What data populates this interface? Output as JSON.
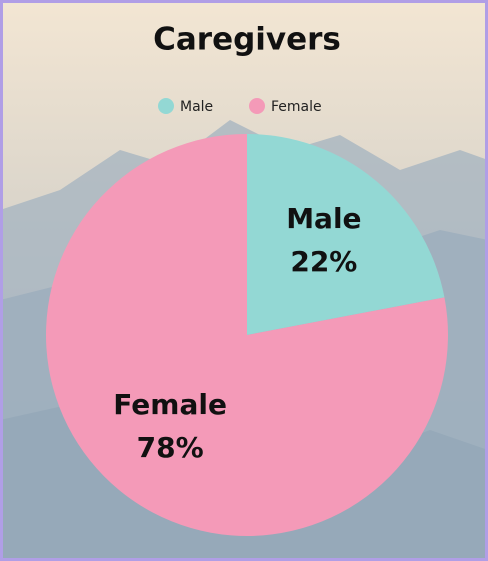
{
  "chart_data": {
    "type": "pie",
    "title": "Caregivers",
    "categories": [
      "Male",
      "Female"
    ],
    "values": [
      22,
      78
    ],
    "value_labels": [
      "22%",
      "78%"
    ],
    "colors": [
      "#93d8d4",
      "#f49ab8"
    ],
    "legend": "top"
  }
}
